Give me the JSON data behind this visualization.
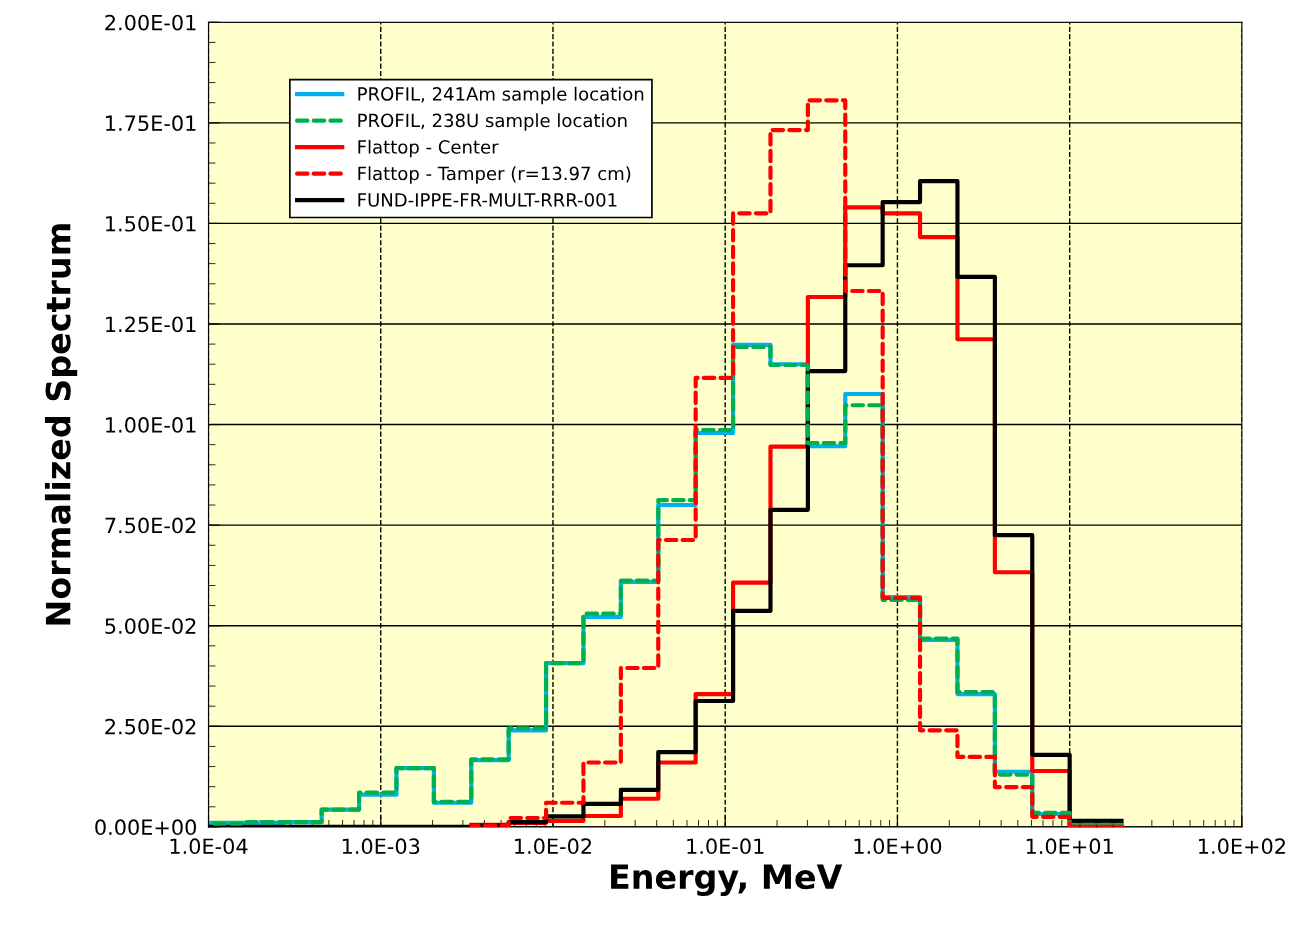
{
  "chart_data": {
    "type": "step",
    "xlabel": "Energy, MeV",
    "ylabel": "Normalized Spectrum",
    "log": "x",
    "x": [
      0.0001013,
      0.000167,
      0.0002754,
      0.000454,
      0.0007485,
      0.001234,
      0.002035,
      0.003355,
      0.005531,
      0.009119,
      0.01503,
      0.02479,
      0.04087,
      0.06738,
      0.1111,
      0.1832,
      0.302,
      0.4979,
      0.8208,
      1.353,
      2.231,
      3.679,
      6.065,
      10,
      20
    ],
    "series": [
      {
        "name": "PROFIL, 241Am sample location",
        "color": "#00b0f0",
        "line_style": "solid",
        "values": [
          0.001,
          0.001,
          0.0012,
          0.0043,
          0.008,
          0.0146,
          0.006,
          0.0166,
          0.024,
          0.0407,
          0.0522,
          0.0609,
          0.08,
          0.0979,
          0.1198,
          0.115,
          0.0946,
          0.1076,
          0.0571,
          0.0465,
          0.033,
          0.0137,
          0.0032,
          0.0005,
          0.0005
        ]
      },
      {
        "name": "PROFIL, 238U sample location",
        "color": "#00b050",
        "line_style": "dashed",
        "values": [
          0.0008,
          0.0012,
          0.0012,
          0.0043,
          0.0085,
          0.0146,
          0.0062,
          0.0168,
          0.0245,
          0.0407,
          0.053,
          0.0612,
          0.0812,
          0.0986,
          0.1193,
          0.1148,
          0.0954,
          0.1048,
          0.0564,
          0.0468,
          0.0335,
          0.013,
          0.0035,
          0.0005,
          0.0005
        ]
      },
      {
        "name": "Flattop - Center",
        "color": "#ff0000",
        "line_style": "solid",
        "values": [
          null,
          null,
          null,
          null,
          null,
          null,
          null,
          0.0005,
          0.001,
          0.0015,
          0.0027,
          0.007,
          0.016,
          0.033,
          0.0607,
          0.0945,
          0.1317,
          0.154,
          0.1525,
          0.1466,
          0.1212,
          0.0633,
          0.0139,
          0.0003,
          0.0003
        ]
      },
      {
        "name": "Flattop - Tamper (r=13.97 cm)",
        "color": "#ff0000",
        "line_style": "dashed",
        "values": [
          null,
          null,
          null,
          null,
          null,
          null,
          null,
          0.0003,
          0.0022,
          0.006,
          0.016,
          0.0395,
          0.0713,
          0.1116,
          0.1525,
          0.1732,
          0.1806,
          0.1332,
          0.0569,
          0.024,
          0.0174,
          0.0099,
          0.0025,
          0,
          0
        ]
      },
      {
        "name": "FUND-IPPE-FR-MULT-RRR-001",
        "color": "#000000",
        "line_style": "solid",
        "values": [
          0,
          0,
          0,
          0,
          0,
          0,
          0,
          0.0003,
          0.0012,
          0.0026,
          0.0057,
          0.0092,
          0.0186,
          0.0313,
          0.0537,
          0.0788,
          0.1133,
          0.1396,
          0.1553,
          0.1605,
          0.1367,
          0.0725,
          0.0179,
          0.0015,
          0.0015
        ]
      }
    ],
    "xlim": [
      0.0001,
      100
    ],
    "xticks": [
      {
        "value": 0.0001,
        "label": "1.0E-04"
      },
      {
        "value": 0.001,
        "label": "1.0E-03"
      },
      {
        "value": 0.01,
        "label": "1.0E-02"
      },
      {
        "value": 0.1,
        "label": "1.0E-01"
      },
      {
        "value": 1,
        "label": "1.0E+00"
      },
      {
        "value": 10,
        "label": "1.0E+01"
      },
      {
        "value": 100,
        "label": "1.0E+02"
      }
    ],
    "ylim": [
      0,
      0.2
    ],
    "yticks": [
      {
        "value": 0,
        "label": "0.00E+00"
      },
      {
        "value": 0.025,
        "label": "2.50E-02"
      },
      {
        "value": 0.05,
        "label": "5.00E-02"
      },
      {
        "value": 0.075,
        "label": "7.50E-02"
      },
      {
        "value": 0.1,
        "label": "1.00E-01"
      },
      {
        "value": 0.125,
        "label": "1.25E-01"
      },
      {
        "value": 0.15,
        "label": "1.50E-01"
      },
      {
        "value": 0.175,
        "label": "1.75E-01"
      },
      {
        "value": 0.2,
        "label": "2.00E-01"
      }
    ],
    "grid": true,
    "legend": "top left"
  }
}
